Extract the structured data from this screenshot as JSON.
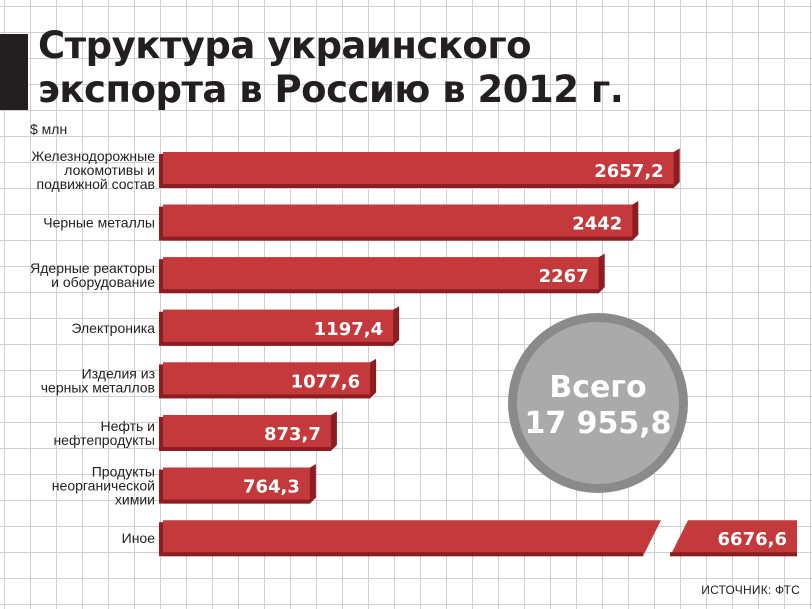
{
  "header": {
    "title_line1": "Структура украинского",
    "title_line2": "экспорта в Россию в 2012 г."
  },
  "unit_label": "$ млн",
  "source_label": "ИСТОЧНИК: ФТС",
  "colors": {
    "bar": "#c4393b",
    "bar_shadow": "#8c1e22",
    "circle": "#aaaaaa",
    "circle_border": "#8a8a8a"
  },
  "total": {
    "label": "Всего",
    "value_text": "17 955,8",
    "value": 17955.8
  },
  "chart_data": {
    "type": "bar",
    "orientation": "horizontal",
    "categories": [
      [
        "Железнодорожные",
        "локомотивы и",
        "подвижной состав"
      ],
      [
        "Черные металлы"
      ],
      [
        "Ядерные реакторы",
        "и оборудование"
      ],
      [
        "Электроника"
      ],
      [
        "Изделия из",
        "черных металлов"
      ],
      [
        "Нефть и",
        "нефтепродукты"
      ],
      [
        "Продукты",
        "неорганической",
        "химии"
      ],
      [
        "Иное"
      ]
    ],
    "values": [
      2657.2,
      2442,
      2267,
      1197.4,
      1077.6,
      873.7,
      764.3,
      6676.6
    ],
    "value_labels": [
      "2657,2",
      "2442",
      "2267",
      "1197,4",
      "1077,6",
      "873,7",
      "764,3",
      "6676,6"
    ],
    "broken_bar": [
      false,
      false,
      false,
      false,
      false,
      false,
      false,
      true
    ],
    "unit": "$ млн"
  }
}
